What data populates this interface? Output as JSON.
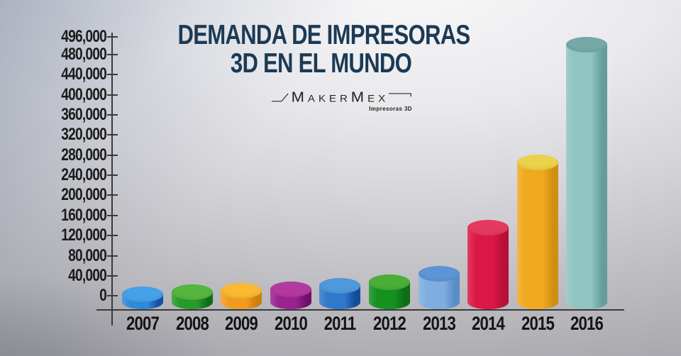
{
  "title": {
    "line1": "DEMANDA DE IMPRESORAS",
    "line2": "3D EN EL MUNDO",
    "color": "#1c3a55"
  },
  "logo": {
    "brand": "MakerMex",
    "tagline": "Impresoras 3D"
  },
  "chart_data": {
    "type": "bar",
    "style": "3d-cylinder",
    "title": "DEMANDA DE IMPRESORAS 3D EN EL MUNDO",
    "xlabel": "",
    "ylabel": "",
    "categories": [
      "2007",
      "2008",
      "2009",
      "2010",
      "2011",
      "2012",
      "2013",
      "2014",
      "2015",
      "2016"
    ],
    "values": [
      15000,
      20000,
      25000,
      30000,
      40000,
      50000,
      75000,
      160000,
      280000,
      496000
    ],
    "values_note": "values estimated from bar heights against the y-axis; 2016 aligns exactly with the 496,000 tick",
    "yticks": [
      "496,000",
      "480,000",
      "440,000",
      "400,000",
      "360,000",
      "320,000",
      "280,000",
      "240,000",
      "200,000",
      "160,000",
      "120,000",
      "80,000",
      "40,000",
      "0"
    ],
    "ylim": [
      0,
      496000
    ],
    "grid": false,
    "legend": false,
    "axis_color": "#3a3a3a",
    "label_color": "#1b1b1b",
    "bar_colors": [
      {
        "top": "#47a1e8",
        "body": "#2f89d8",
        "dark": "#15509e"
      },
      {
        "top": "#55b53d",
        "body": "#279a2b",
        "dark": "#0f6c17"
      },
      {
        "top": "#f9b930",
        "body": "#f29c1d",
        "dark": "#cc7d0c"
      },
      {
        "top": "#b23a9f",
        "body": "#9a2392",
        "dark": "#6d1066"
      },
      {
        "top": "#4f98da",
        "body": "#2f79ca",
        "dark": "#154a9c"
      },
      {
        "top": "#4bae37",
        "body": "#14911f",
        "dark": "#0c6e15"
      },
      {
        "top": "#5c95d6",
        "body": "#7fade0",
        "dark": "#5a8cc8"
      },
      {
        "top": "#e43a60",
        "body": "#dc1746",
        "dark": "#b51038"
      },
      {
        "top": "#edd14b",
        "body": "#efaa1f",
        "dark": "#d18e12"
      },
      {
        "top": "#74a9a7",
        "body": "#8ec4c1",
        "dark": "#649e9b"
      }
    ]
  }
}
